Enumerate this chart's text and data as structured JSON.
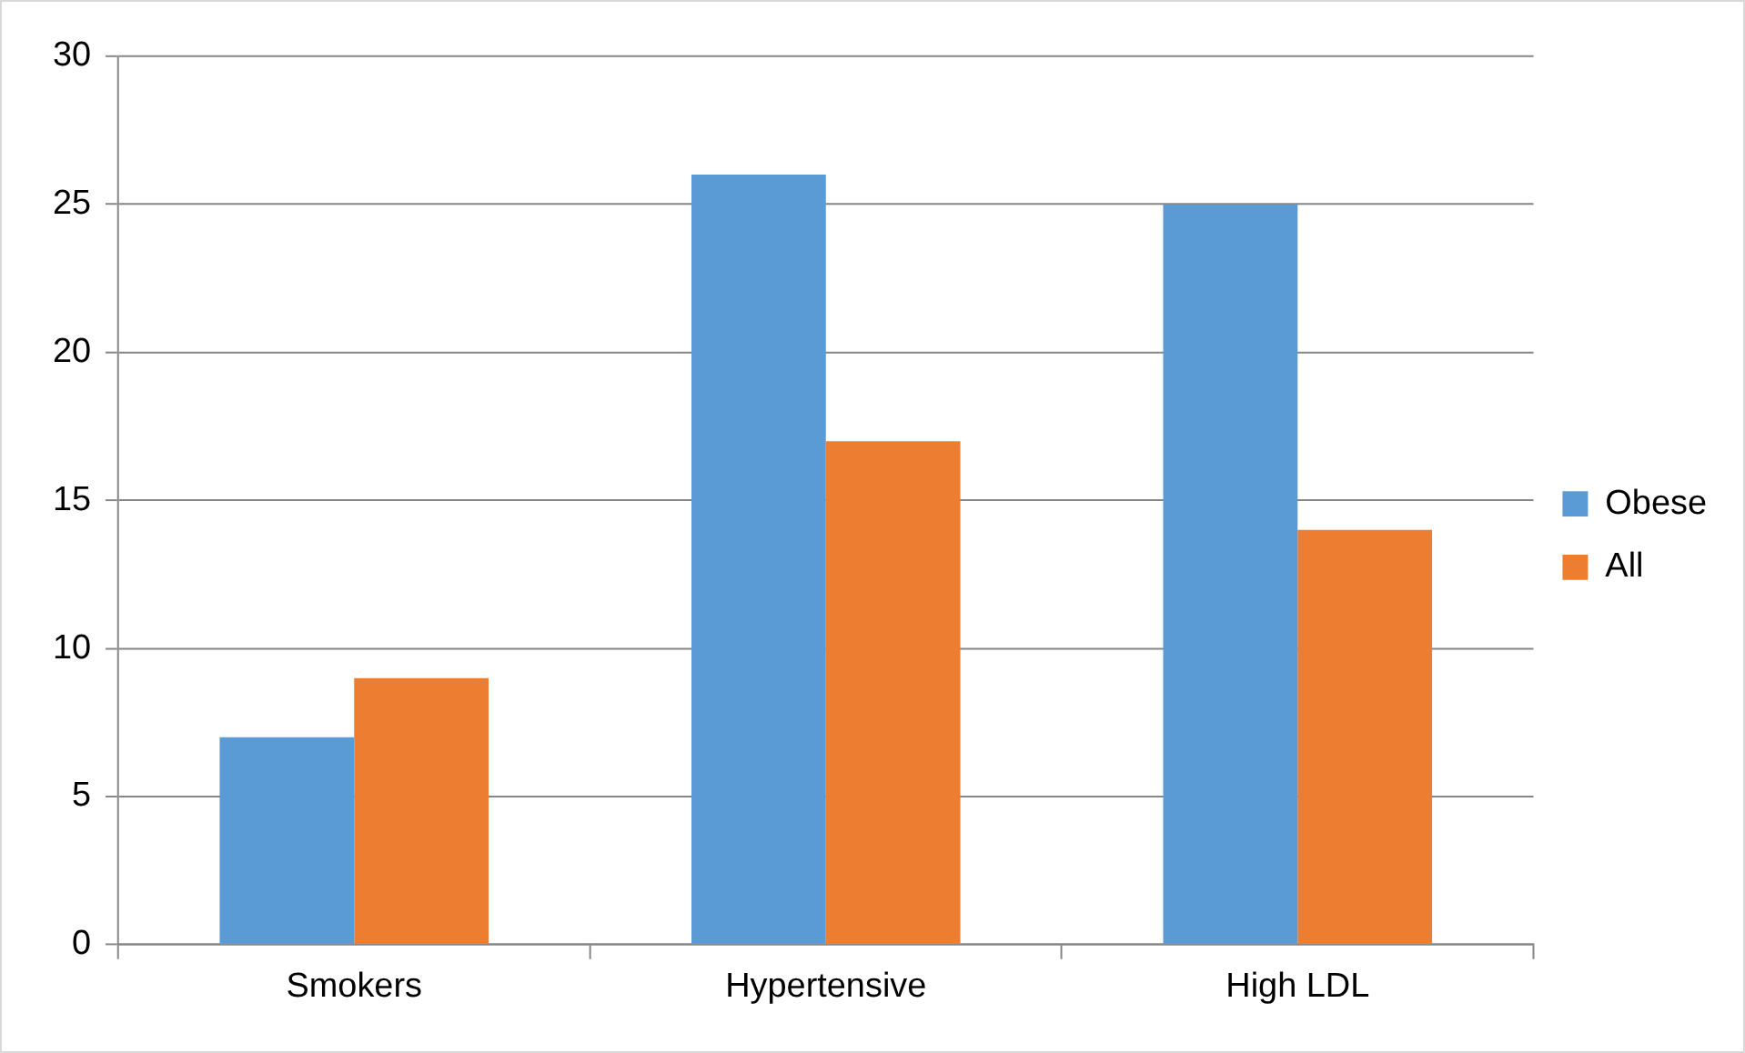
{
  "chart_data": {
    "type": "bar",
    "categories": [
      "Smokers",
      "Hypertensive",
      "High LDL"
    ],
    "series": [
      {
        "name": "Obese",
        "color": "#5b9bd5",
        "values": [
          7,
          26,
          25
        ]
      },
      {
        "name": "All",
        "color": "#ed7d31",
        "values": [
          9,
          17,
          14
        ]
      }
    ],
    "ylim": [
      0,
      30
    ],
    "yticks": [
      0,
      5,
      10,
      15,
      20,
      25,
      30
    ],
    "grid": "y",
    "legend": "right"
  }
}
